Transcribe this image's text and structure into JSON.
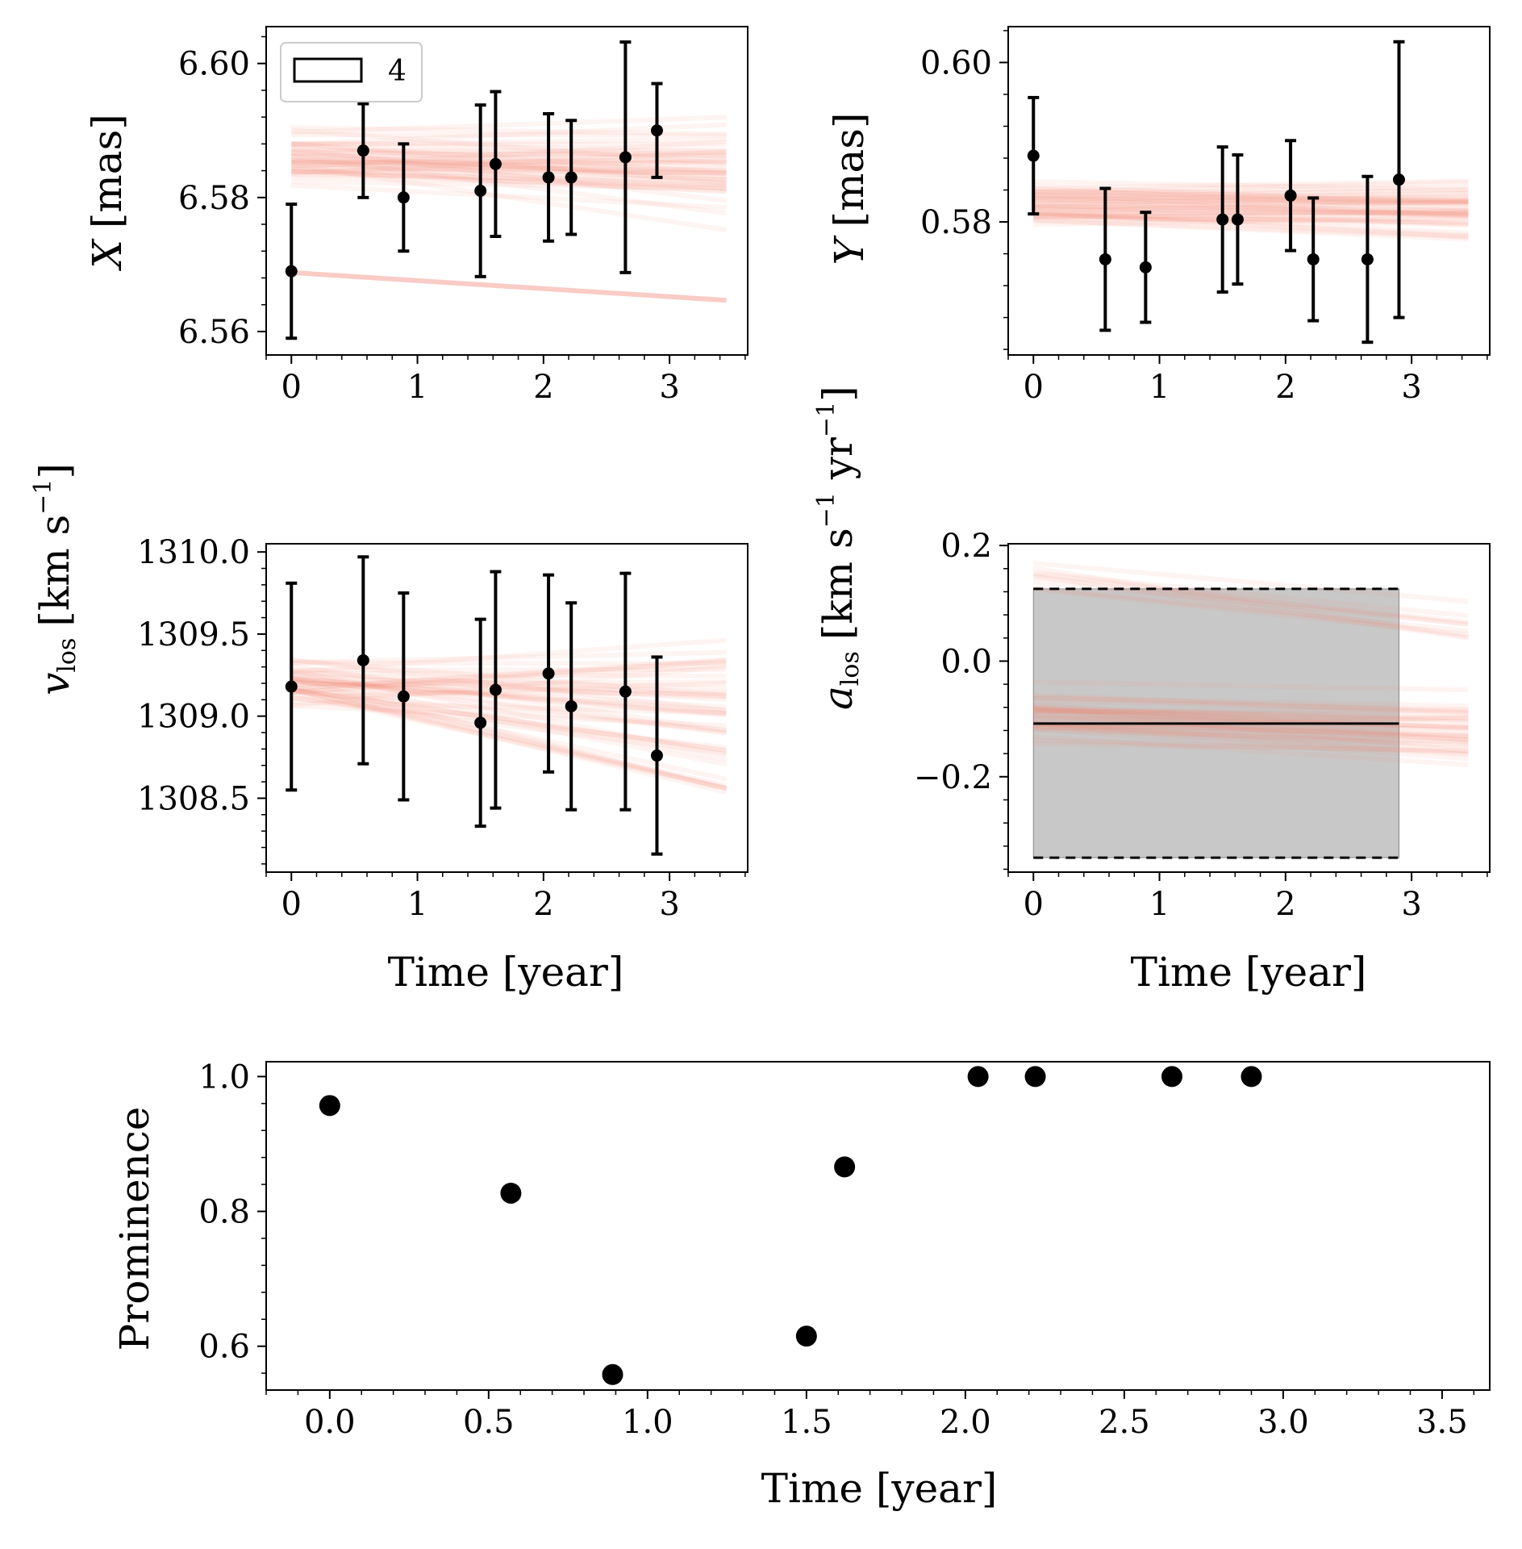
{
  "colors": {
    "model_lines": "#f08070",
    "points": "#000000",
    "band_fill": "#c8c8c8",
    "axes": "#000000",
    "background": "#ffffff"
  },
  "chart_data": [
    {
      "id": "panel-x",
      "type": "scatter",
      "ylabel": {
        "var": "X",
        "unit": "[mas]"
      },
      "xlim": [
        -0.2,
        3.62
      ],
      "ylim": [
        6.5565,
        6.6055
      ],
      "xticks": [
        0,
        1,
        2,
        3
      ],
      "xtick_labels": [
        "0",
        "1",
        "2",
        "3"
      ],
      "yticks": [
        6.56,
        6.58,
        6.6
      ],
      "ytick_labels": [
        "6.56",
        "6.58",
        "6.60"
      ],
      "legend": {
        "label": "4",
        "position": "top-left"
      },
      "x": [
        0.0,
        0.57,
        0.89,
        1.5,
        1.62,
        2.04,
        2.22,
        2.65,
        2.9
      ],
      "y": [
        6.569,
        6.587,
        6.58,
        6.581,
        6.585,
        6.583,
        6.583,
        6.586,
        6.59
      ],
      "yerr": [
        0.01,
        0.007,
        0.008,
        0.0128,
        0.0108,
        0.0095,
        0.0085,
        0.0172,
        0.007
      ],
      "model_lines": {
        "count": 45,
        "x_range": [
          0,
          3.45
        ],
        "start_center": 6.5855,
        "start_spread": 0.0028,
        "slope_center": -0.0005,
        "slope_spread": 0.0013,
        "outlier": [
          6.5688,
          -0.0012
        ]
      }
    },
    {
      "id": "panel-y",
      "type": "scatter",
      "ylabel": {
        "var": "Y",
        "unit": "[mas]"
      },
      "xlim": [
        -0.2,
        3.62
      ],
      "ylim": [
        0.5633,
        0.6045
      ],
      "xticks": [
        0,
        1,
        2,
        3
      ],
      "xtick_labels": [
        "0",
        "1",
        "2",
        "3"
      ],
      "yticks": [
        0.58,
        0.6
      ],
      "ytick_labels": [
        "0.58",
        "0.60"
      ],
      "x": [
        0.0,
        0.57,
        0.89,
        1.5,
        1.62,
        2.04,
        2.22,
        2.65,
        2.9
      ],
      "y": [
        0.5883,
        0.5753,
        0.5743,
        0.5803,
        0.5803,
        0.5833,
        0.5753,
        0.5753,
        0.5853
      ],
      "yerr": [
        0.0073,
        0.0089,
        0.0069,
        0.0091,
        0.0081,
        0.0069,
        0.0077,
        0.0104,
        0.0173
      ],
      "model_lines": {
        "count": 45,
        "x_range": [
          0,
          3.45
        ],
        "start_center": 0.5825,
        "start_spread": 0.0018,
        "slope_center": -0.0003,
        "slope_spread": 0.0006
      }
    },
    {
      "id": "panel-vlos",
      "type": "scatter",
      "ylabel": {
        "var": "v",
        "sub": "los",
        "unit": "[km s",
        "exp": "−1",
        "unit_end": "]"
      },
      "xlim": [
        -0.2,
        3.62
      ],
      "ylim": [
        1308.05,
        1310.05
      ],
      "xticks": [
        0,
        1,
        2,
        3
      ],
      "xtick_labels": [
        "0",
        "1",
        "2",
        "3"
      ],
      "yticks": [
        1308.5,
        1309.0,
        1309.5,
        1310.0
      ],
      "ytick_labels": [
        "1308.5",
        "1309.0",
        "1309.5",
        "1310.0"
      ],
      "x": [
        0.0,
        0.57,
        0.89,
        1.5,
        1.62,
        2.04,
        2.22,
        2.65,
        2.9
      ],
      "y": [
        1309.18,
        1309.34,
        1309.12,
        1308.96,
        1309.16,
        1309.26,
        1309.06,
        1309.15,
        1308.76
      ],
      "yerr": [
        0.63,
        0.63,
        0.63,
        0.63,
        0.72,
        0.6,
        0.63,
        0.72,
        0.6
      ],
      "model_lines": {
        "count": 45,
        "x_range": [
          0,
          3.45
        ],
        "start_center": 1309.2,
        "start_spread": 0.12,
        "slope_center": -0.06,
        "slope_spread": 0.09
      }
    },
    {
      "id": "panel-alos",
      "type": "scatter",
      "ylabel": {
        "var": "a",
        "sub": "los",
        "unit": "[km s",
        "exp": "−1",
        "unit_mid": " yr",
        "exp2": "−1",
        "unit_end": "]"
      },
      "xlim": [
        -0.2,
        3.62
      ],
      "ylim": [
        -0.365,
        0.203
      ],
      "xticks": [
        0,
        1,
        2,
        3
      ],
      "xtick_labels": [
        "0",
        "1",
        "2",
        "3"
      ],
      "yticks": [
        -0.2,
        0.0,
        0.2
      ],
      "ytick_labels": [
        "−0.2",
        "0.0",
        "0.2"
      ],
      "band": {
        "x0": 0.0,
        "x1": 2.9,
        "y0": -0.34,
        "y1": 0.125,
        "center": -0.108
      },
      "model_lines": {
        "count": 45,
        "x_range": [
          0,
          3.45
        ],
        "start_center": -0.095,
        "start_spread": 0.035,
        "slope_center": -0.008,
        "slope_spread": 0.01,
        "upper_center": 0.15,
        "upper_slope": -0.025
      }
    },
    {
      "id": "panel-prominence",
      "type": "scatter",
      "ylabel": "Prominence",
      "xlabel": "Time [year]",
      "xlim": [
        -0.2,
        3.65
      ],
      "ylim": [
        0.535,
        1.022
      ],
      "xticks": [
        0.0,
        0.5,
        1.0,
        1.5,
        2.0,
        2.5,
        3.0,
        3.5
      ],
      "xtick_labels": [
        "0.0",
        "0.5",
        "1.0",
        "1.5",
        "2.0",
        "2.5",
        "3.0",
        "3.5"
      ],
      "yticks": [
        0.6,
        0.8,
        1.0
      ],
      "ytick_labels": [
        "0.6",
        "0.8",
        "1.0"
      ],
      "x": [
        0.0,
        0.57,
        0.89,
        1.5,
        1.62,
        2.04,
        2.22,
        2.65,
        2.9
      ],
      "y": [
        0.957,
        0.827,
        0.558,
        0.615,
        0.866,
        1.0,
        1.0,
        1.0,
        1.0
      ]
    }
  ],
  "labels": {
    "time_label": "Time [year]"
  }
}
